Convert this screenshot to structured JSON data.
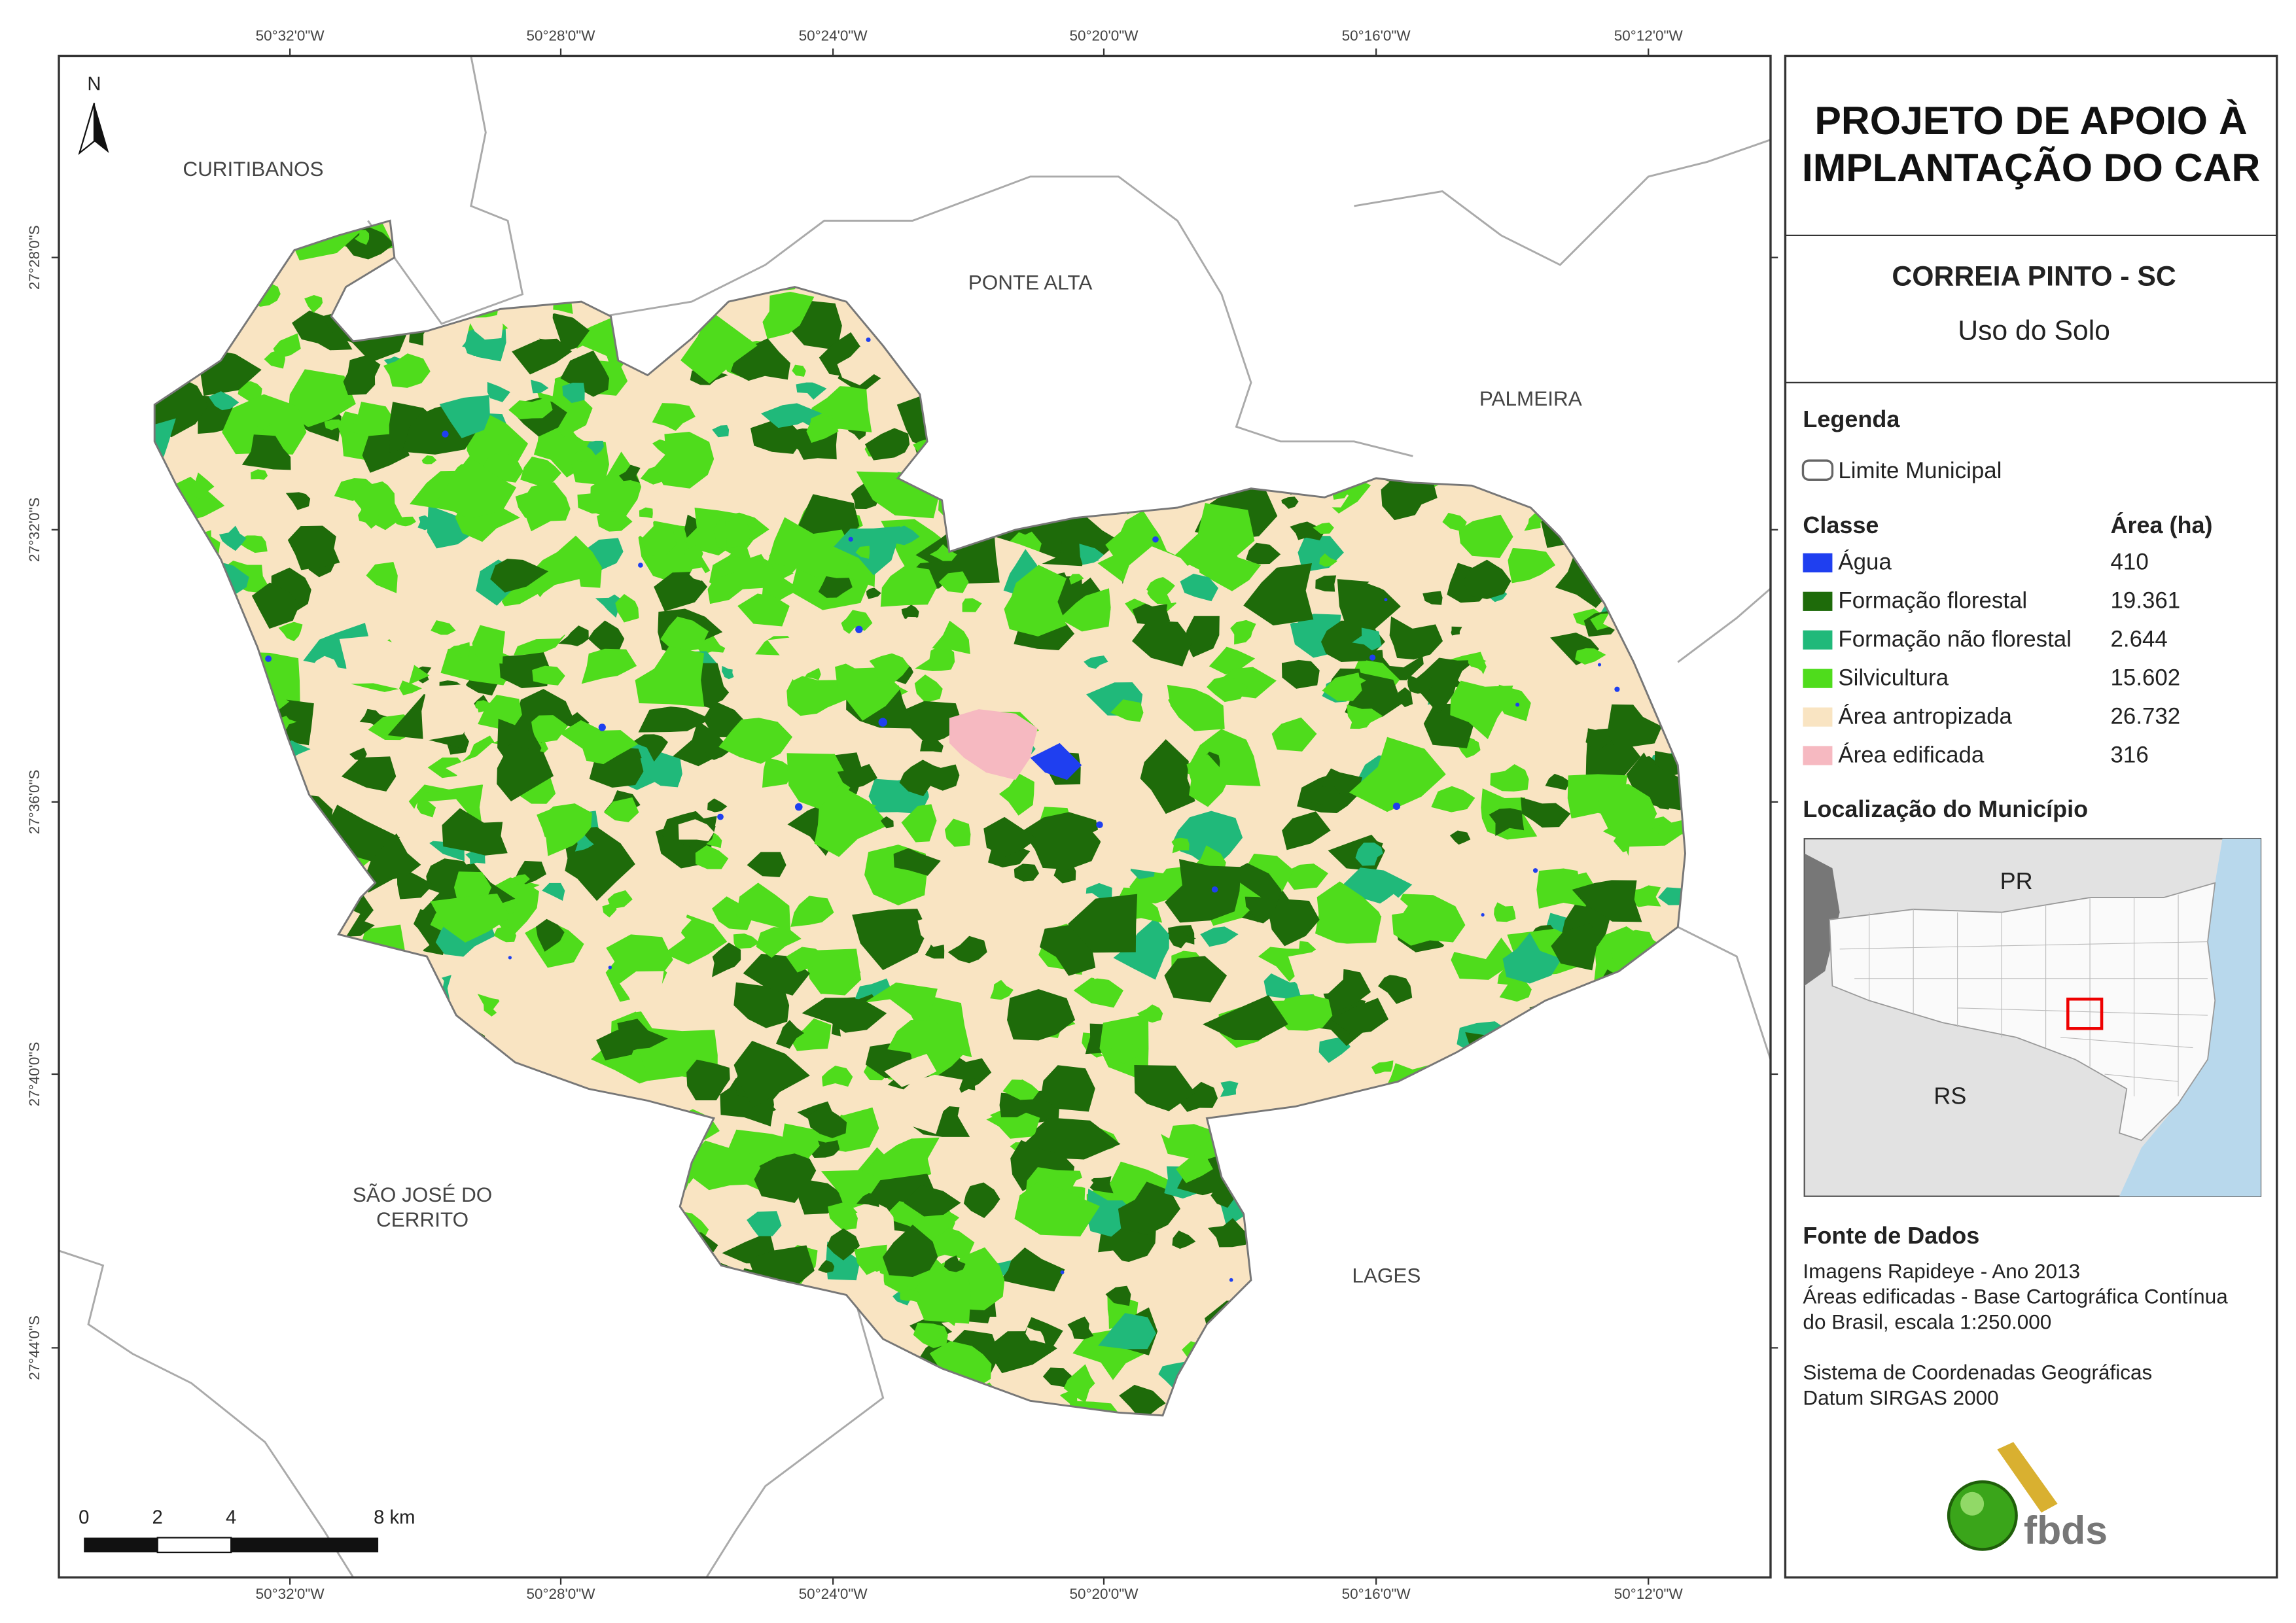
{
  "map": {
    "north": "N",
    "coordinate_labels": {
      "top": [
        "50°32'0\"W",
        "50°28'0\"W",
        "50°24'0\"W",
        "50°20'0\"W",
        "50°16'0\"W",
        "50°12'0\"W"
      ],
      "bottom": [
        "50°32'0\"W",
        "50°28'0\"W",
        "50°24'0\"W",
        "50°20'0\"W",
        "50°16'0\"W",
        "50°12'0\"W"
      ],
      "left": [
        "27°28'0\"S",
        "27°32'0\"S",
        "27°36'0\"S",
        "27°40'0\"S",
        "27°44'0\"S"
      ]
    },
    "place_labels": [
      [
        "CURITIBANOS"
      ],
      [
        "PONTE ALTA"
      ],
      [
        "PALMEIRA"
      ],
      [
        "SÃO JOSÉ DO",
        "CERRITO"
      ],
      [
        "LAGES"
      ]
    ]
  },
  "scale_bar": {
    "labels": [
      "0",
      "2",
      "4",
      "8 km"
    ]
  },
  "panel": {
    "title_lines": [
      "PROJETO DE APOIO À",
      "IMPLANTAÇÃO DO CAR"
    ],
    "municipality": "CORREIA PINTO - SC",
    "theme": "Uso do Solo",
    "legend": {
      "heading": "Legenda",
      "boundary_label": "Limite Municipal",
      "class_heading": "Classe",
      "area_heading": "Área (ha)",
      "classes": [
        {
          "name": "Água",
          "area": "410",
          "color": "#1f3ff0"
        },
        {
          "name": "Formação florestal",
          "area": "19.361",
          "color": "#1e6b0a"
        },
        {
          "name": "Formação não florestal",
          "area": "2.644",
          "color": "#20b97a"
        },
        {
          "name": "Silvicultura",
          "area": "15.602",
          "color": "#4fdc1c"
        },
        {
          "name": "Área antropizada",
          "area": "26.732",
          "color": "#f9e4c2"
        },
        {
          "name": "Área edificada",
          "area": "316",
          "color": "#f6b9c1"
        }
      ]
    },
    "location": {
      "heading": "Localização do Município",
      "labels": [
        "PR",
        "RS"
      ]
    },
    "sources": {
      "heading": "Fonte de Dados",
      "lines": [
        "Imagens Rapideye - Ano 2013",
        "Áreas edificadas - Base Cartográfica Contínua",
        "do Brasil, escala 1:250.000",
        "",
        "Sistema de Coordenadas Geográficas",
        "Datum SIRGAS 2000"
      ]
    },
    "logo": "fbds"
  }
}
